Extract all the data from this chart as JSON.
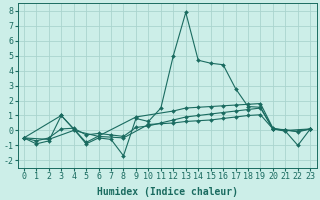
{
  "xlabel": "Humidex (Indice chaleur)",
  "bg_color": "#cceee8",
  "grid_color": "#aad4ce",
  "line_color": "#1a6b60",
  "xlim": [
    -0.5,
    23.5
  ],
  "ylim": [
    -2.5,
    8.5
  ],
  "xticks": [
    0,
    1,
    2,
    3,
    4,
    5,
    6,
    7,
    8,
    9,
    10,
    11,
    12,
    13,
    14,
    15,
    16,
    17,
    18,
    19,
    20,
    21,
    22,
    23
  ],
  "yticks": [
    -2,
    -1,
    0,
    1,
    2,
    3,
    4,
    5,
    6,
    7,
    8
  ],
  "series1": [
    [
      0,
      -0.5
    ],
    [
      1,
      -0.9
    ],
    [
      2,
      -0.7
    ],
    [
      3,
      1.0
    ],
    [
      4,
      0.1
    ],
    [
      5,
      -0.9
    ],
    [
      6,
      -0.5
    ],
    [
      7,
      -0.6
    ],
    [
      8,
      -1.7
    ],
    [
      9,
      0.8
    ],
    [
      10,
      0.6
    ],
    [
      11,
      1.5
    ],
    [
      12,
      5.0
    ],
    [
      13,
      7.9
    ],
    [
      14,
      4.7
    ],
    [
      15,
      4.5
    ],
    [
      16,
      4.4
    ],
    [
      17,
      2.8
    ],
    [
      18,
      1.6
    ],
    [
      19,
      1.55
    ],
    [
      20,
      0.1
    ],
    [
      21,
      -0.05
    ],
    [
      22,
      -1.0
    ],
    [
      23,
      0.1
    ]
  ],
  "series2": [
    [
      0,
      -0.5
    ],
    [
      1,
      -0.7
    ],
    [
      2,
      -0.5
    ],
    [
      3,
      0.1
    ],
    [
      4,
      0.15
    ],
    [
      5,
      -0.3
    ],
    [
      6,
      -0.2
    ],
    [
      7,
      -0.3
    ],
    [
      8,
      -0.4
    ],
    [
      9,
      0.2
    ],
    [
      10,
      0.3
    ],
    [
      11,
      0.5
    ],
    [
      12,
      0.7
    ],
    [
      13,
      0.9
    ],
    [
      14,
      1.0
    ],
    [
      15,
      1.1
    ],
    [
      16,
      1.2
    ],
    [
      17,
      1.3
    ],
    [
      18,
      1.4
    ],
    [
      19,
      1.5
    ],
    [
      20,
      0.1
    ],
    [
      21,
      0.05
    ],
    [
      22,
      -0.1
    ],
    [
      23,
      0.1
    ]
  ],
  "series3": [
    [
      0,
      -0.5
    ],
    [
      3,
      1.0
    ],
    [
      5,
      -0.8
    ],
    [
      9,
      0.9
    ],
    [
      12,
      1.3
    ],
    [
      13,
      1.5
    ],
    [
      14,
      1.55
    ],
    [
      15,
      1.6
    ],
    [
      16,
      1.65
    ],
    [
      17,
      1.7
    ],
    [
      18,
      1.75
    ],
    [
      19,
      1.8
    ],
    [
      20,
      0.15
    ],
    [
      21,
      0.0
    ],
    [
      22,
      -0.05
    ],
    [
      23,
      0.1
    ]
  ],
  "series4": [
    [
      0,
      -0.5
    ],
    [
      2,
      -0.6
    ],
    [
      4,
      0.0
    ],
    [
      6,
      -0.4
    ],
    [
      8,
      -0.5
    ],
    [
      10,
      0.4
    ],
    [
      12,
      0.5
    ],
    [
      13,
      0.6
    ],
    [
      14,
      0.65
    ],
    [
      15,
      0.7
    ],
    [
      16,
      0.8
    ],
    [
      17,
      0.9
    ],
    [
      18,
      1.0
    ],
    [
      19,
      1.05
    ],
    [
      20,
      0.1
    ],
    [
      21,
      0.0
    ],
    [
      23,
      0.1
    ]
  ],
  "tick_fontsize": 6,
  "xlabel_fontsize": 7
}
